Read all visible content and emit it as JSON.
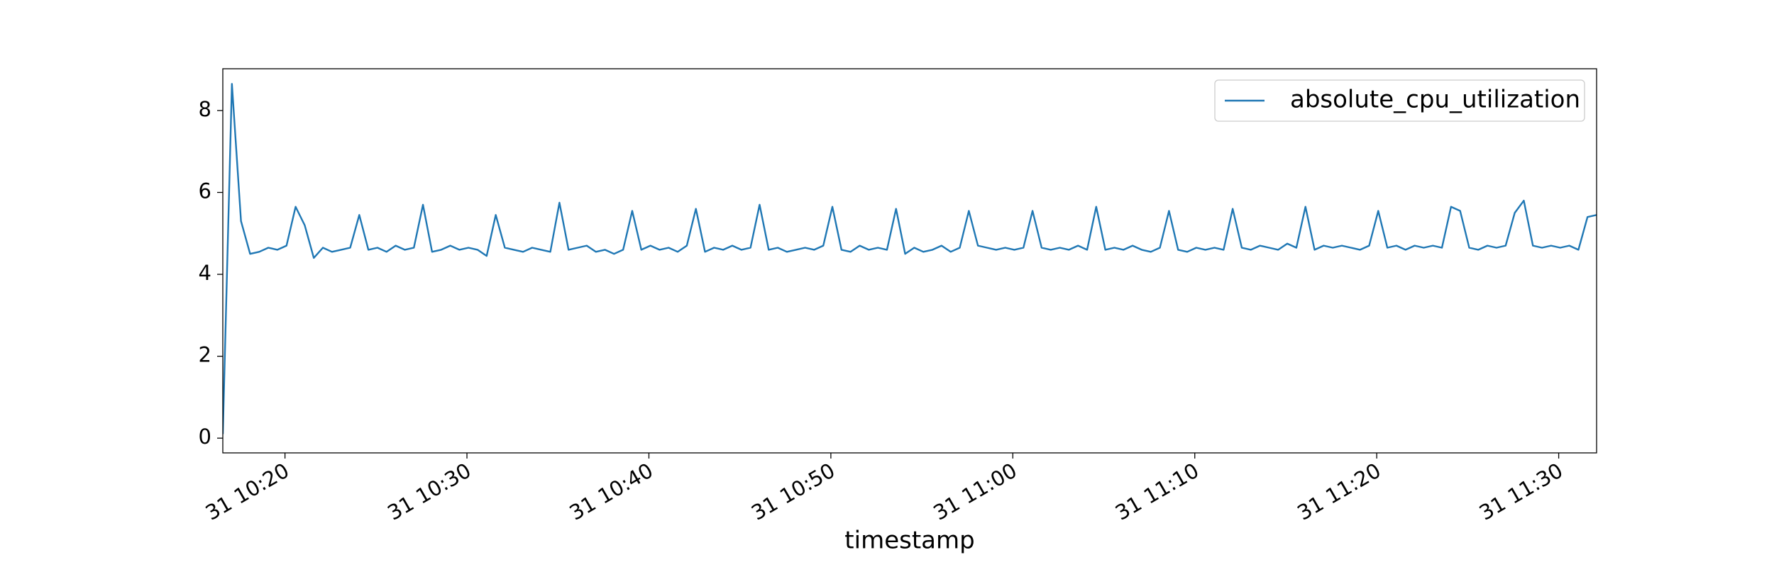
{
  "chart_data": {
    "type": "line",
    "xlabel": "timestamp",
    "legend": "upper right",
    "x": [
      "31 10:16:35",
      "31 10:17:05",
      "31 10:17:35",
      "31 10:18:05",
      "31 10:18:35",
      "31 10:19:05",
      "31 10:19:35",
      "31 10:20:05",
      "31 10:20:35",
      "31 10:21:05",
      "31 10:21:35",
      "31 10:22:05",
      "31 10:22:35",
      "31 10:23:05",
      "31 10:23:35",
      "31 10:24:05",
      "31 10:24:35",
      "31 10:25:05",
      "31 10:25:35",
      "31 10:26:05",
      "31 10:26:35",
      "31 10:27:05",
      "31 10:27:35",
      "31 10:28:05",
      "31 10:28:35",
      "31 10:29:05",
      "31 10:29:35",
      "31 10:30:05",
      "31 10:30:35",
      "31 10:31:05",
      "31 10:31:35",
      "31 10:32:05",
      "31 10:32:35",
      "31 10:33:05",
      "31 10:33:35",
      "31 10:34:05",
      "31 10:34:35",
      "31 10:35:05",
      "31 10:35:35",
      "31 10:36:05",
      "31 10:36:35",
      "31 10:37:05",
      "31 10:37:35",
      "31 10:38:05",
      "31 10:38:35",
      "31 10:39:05",
      "31 10:39:35",
      "31 10:40:05",
      "31 10:40:35",
      "31 10:41:05",
      "31 10:41:35",
      "31 10:42:05",
      "31 10:42:35",
      "31 10:43:05",
      "31 10:43:35",
      "31 10:44:05",
      "31 10:44:35",
      "31 10:45:05",
      "31 10:45:35",
      "31 10:46:05",
      "31 10:46:35",
      "31 10:47:05",
      "31 10:47:35",
      "31 10:48:05",
      "31 10:48:35",
      "31 10:49:05",
      "31 10:49:35",
      "31 10:50:05",
      "31 10:50:35",
      "31 10:51:05",
      "31 10:51:35",
      "31 10:52:05",
      "31 10:52:35",
      "31 10:53:05",
      "31 10:53:35",
      "31 10:54:05",
      "31 10:54:35",
      "31 10:55:05",
      "31 10:55:35",
      "31 10:56:05",
      "31 10:56:35",
      "31 10:57:05",
      "31 10:57:35",
      "31 10:58:05",
      "31 10:58:35",
      "31 10:59:05",
      "31 10:59:35",
      "31 11:00:05",
      "31 11:00:35",
      "31 11:01:05",
      "31 11:01:35",
      "31 11:02:05",
      "31 11:02:35",
      "31 11:03:05",
      "31 11:03:35",
      "31 11:04:05",
      "31 11:04:35",
      "31 11:05:05",
      "31 11:05:35",
      "31 11:06:05",
      "31 11:06:35",
      "31 11:07:05",
      "31 11:07:35",
      "31 11:08:05",
      "31 11:08:35",
      "31 11:09:05",
      "31 11:09:35",
      "31 11:10:05",
      "31 11:10:35",
      "31 11:11:05",
      "31 11:11:35",
      "31 11:12:05",
      "31 11:12:35",
      "31 11:13:05",
      "31 11:13:35",
      "31 11:14:05",
      "31 11:14:35",
      "31 11:15:05",
      "31 11:15:35",
      "31 11:16:05",
      "31 11:16:35",
      "31 11:17:05",
      "31 11:17:35",
      "31 11:18:05",
      "31 11:18:35",
      "31 11:19:05",
      "31 11:19:35",
      "31 11:20:05",
      "31 11:20:35",
      "31 11:21:05",
      "31 11:21:35",
      "31 11:22:05",
      "31 11:22:35",
      "31 11:23:05",
      "31 11:23:35",
      "31 11:24:05",
      "31 11:24:35",
      "31 11:25:05",
      "31 11:25:35",
      "31 11:26:05",
      "31 11:26:35",
      "31 11:27:05",
      "31 11:27:35",
      "31 11:28:05",
      "31 11:28:35",
      "31 11:29:05",
      "31 11:29:35",
      "31 11:30:05",
      "31 11:30:35",
      "31 11:31:05",
      "31 11:31:35",
      "31 11:32:05"
    ],
    "series": [
      {
        "name": "absolute_cpu_utilization",
        "color": "#1f77b4",
        "values": [
          0.1,
          8.65,
          5.3,
          4.5,
          4.55,
          4.65,
          4.6,
          4.7,
          5.65,
          5.2,
          4.4,
          4.65,
          4.55,
          4.6,
          4.65,
          5.45,
          4.6,
          4.65,
          4.55,
          4.7,
          4.6,
          4.65,
          5.7,
          4.55,
          4.6,
          4.7,
          4.6,
          4.65,
          4.6,
          4.45,
          5.45,
          4.65,
          4.6,
          4.55,
          4.65,
          4.6,
          4.55,
          5.75,
          4.6,
          4.65,
          4.7,
          4.55,
          4.6,
          4.5,
          4.6,
          5.55,
          4.6,
          4.7,
          4.6,
          4.65,
          4.55,
          4.7,
          5.6,
          4.55,
          4.65,
          4.6,
          4.7,
          4.6,
          4.65,
          5.7,
          4.6,
          4.65,
          4.55,
          4.6,
          4.65,
          4.6,
          4.7,
          5.65,
          4.6,
          4.55,
          4.7,
          4.6,
          4.65,
          4.6,
          5.6,
          4.5,
          4.65,
          4.55,
          4.6,
          4.7,
          4.55,
          4.65,
          5.55,
          4.7,
          4.65,
          4.6,
          4.65,
          4.6,
          4.65,
          5.55,
          4.65,
          4.6,
          4.65,
          4.6,
          4.7,
          4.6,
          5.65,
          4.6,
          4.65,
          4.6,
          4.7,
          4.6,
          4.55,
          4.65,
          5.55,
          4.6,
          4.55,
          4.65,
          4.6,
          4.65,
          4.6,
          5.6,
          4.65,
          4.6,
          4.7,
          4.65,
          4.6,
          4.75,
          4.65,
          5.65,
          4.6,
          4.7,
          4.65,
          4.7,
          4.65,
          4.6,
          4.7,
          5.55,
          4.65,
          4.7,
          4.6,
          4.7,
          4.65,
          4.7,
          4.65,
          5.65,
          5.55,
          4.65,
          4.6,
          4.7,
          4.65,
          4.7,
          5.5,
          5.8,
          4.7,
          4.65,
          4.7,
          4.65,
          4.7,
          4.6,
          5.4,
          5.45
        ]
      }
    ],
    "xlim": [
      "31 10:16:35",
      "31 11:32:05"
    ],
    "xticks": [
      "31 10:20",
      "31 10:30",
      "31 10:40",
      "31 10:50",
      "31 11:00",
      "31 11:10",
      "31 11:20",
      "31 11:30"
    ],
    "ylim": [
      -0.36,
      9.02
    ],
    "yticks": [
      0,
      2,
      4,
      6,
      8
    ]
  }
}
